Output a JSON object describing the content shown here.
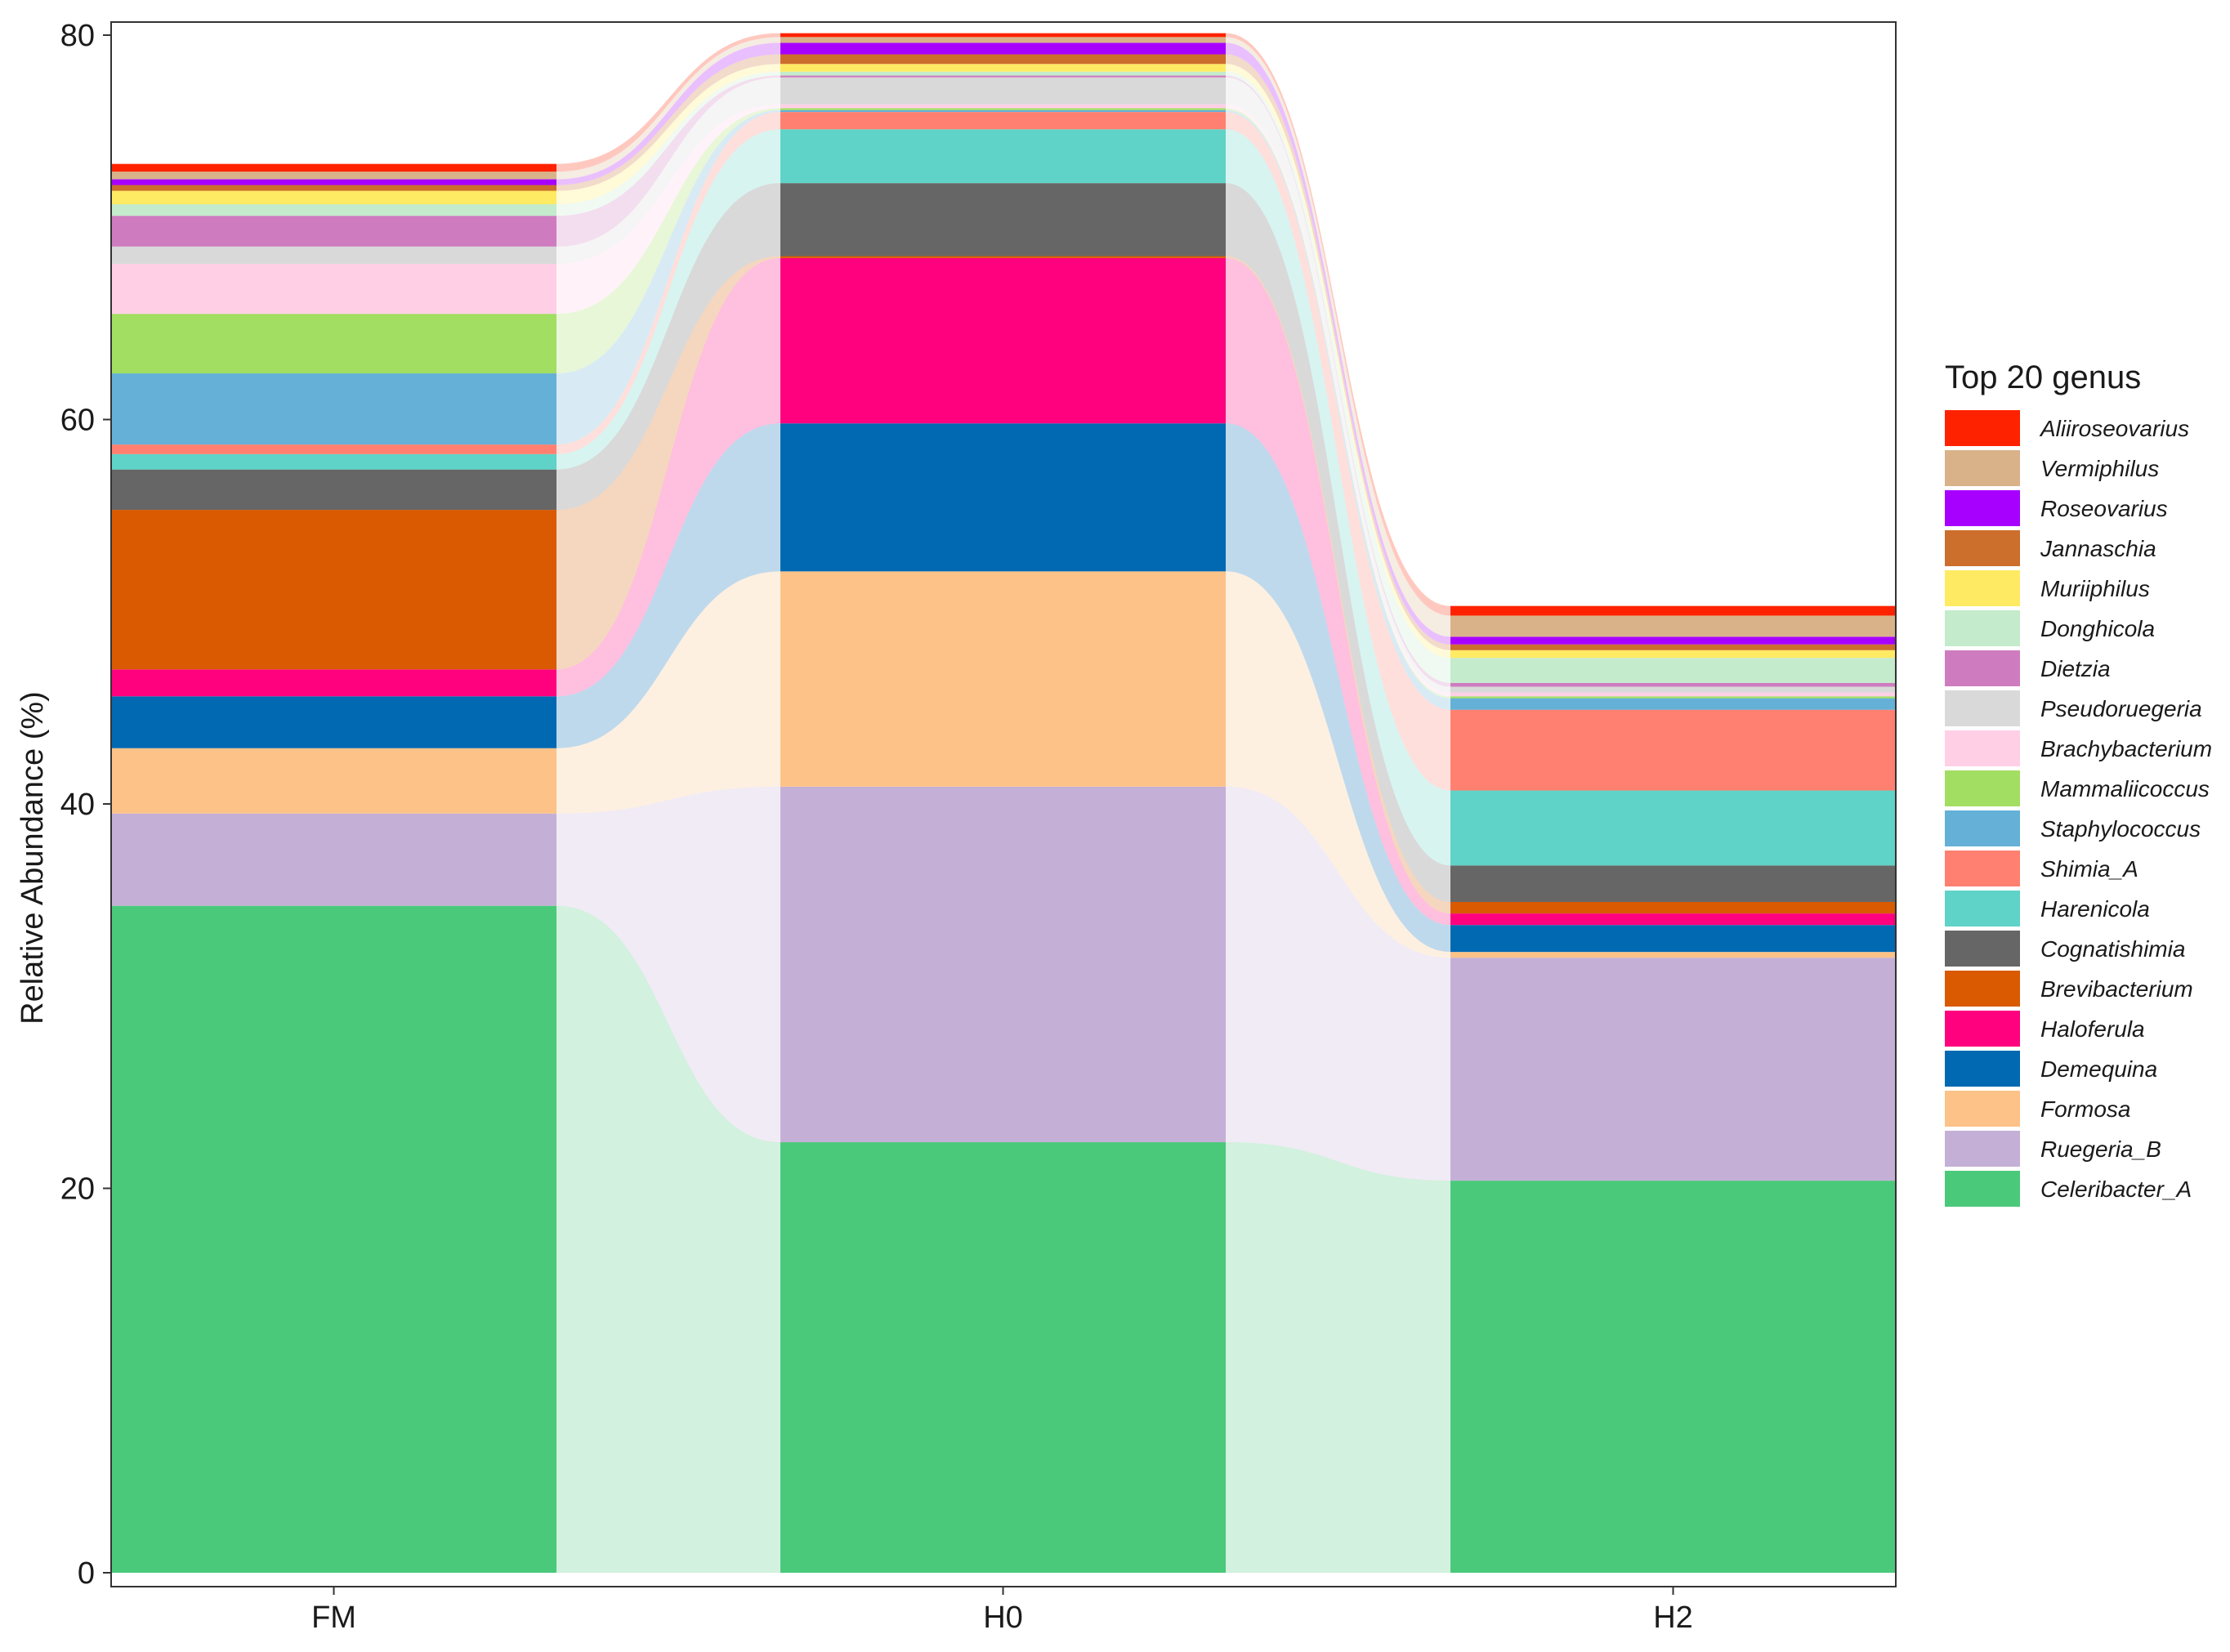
{
  "chart_data": {
    "type": "bar",
    "subtype": "stacked-alluvial",
    "categories": [
      "FM",
      "H0",
      "H2"
    ],
    "ylabel": "Relative Abundance (%)",
    "xlabel": "",
    "ylim": [
      0,
      80
    ],
    "yticks": [
      0,
      20,
      40,
      60,
      80
    ],
    "grid": false,
    "legend": {
      "title": "Top 20 genus",
      "position": "right"
    },
    "series": [
      {
        "name": "Celeribacter_A",
        "color": "#4AC97A",
        "values": [
          34.7,
          22.4,
          20.4
        ]
      },
      {
        "name": "Ruegeria_B",
        "color": "#C4B0D6",
        "values": [
          4.8,
          18.5,
          11.6
        ]
      },
      {
        "name": "Formosa",
        "color": "#FCC288",
        "values": [
          3.4,
          11.2,
          0.3
        ]
      },
      {
        "name": "Demequina",
        "color": "#0069B2",
        "values": [
          2.7,
          7.7,
          1.4
        ]
      },
      {
        "name": "Haloferula",
        "color": "#FF007F",
        "values": [
          1.4,
          8.6,
          0.6
        ]
      },
      {
        "name": "Brevibacterium",
        "color": "#D95A00",
        "values": [
          8.3,
          0.1,
          0.6
        ]
      },
      {
        "name": "Cognatishimia",
        "color": "#666666",
        "values": [
          2.1,
          3.8,
          1.9
        ]
      },
      {
        "name": "Harenicola",
        "color": "#5FD3C7",
        "values": [
          0.8,
          2.8,
          3.9
        ]
      },
      {
        "name": "Shimia_A",
        "color": "#FF8070",
        "values": [
          0.5,
          0.9,
          4.2
        ]
      },
      {
        "name": "Staphylococcus",
        "color": "#64B0D6",
        "values": [
          3.7,
          0.1,
          0.6
        ]
      },
      {
        "name": "Mammaliicoccus",
        "color": "#A2DE62",
        "values": [
          3.1,
          0.1,
          0.1
        ]
      },
      {
        "name": "Brachybacterium",
        "color": "#FFCFE6",
        "values": [
          2.6,
          0.2,
          0.2
        ]
      },
      {
        "name": "Pseudoruegeria",
        "color": "#D9D9D9",
        "values": [
          0.9,
          1.4,
          0.3
        ]
      },
      {
        "name": "Dietzia",
        "color": "#CE7CBF",
        "values": [
          1.6,
          0.1,
          0.2
        ]
      },
      {
        "name": "Donghicola",
        "color": "#C4EBCB",
        "values": [
          0.6,
          0.2,
          1.3
        ]
      },
      {
        "name": "Muriiphilus",
        "color": "#FFEA63",
        "values": [
          0.7,
          0.4,
          0.4
        ]
      },
      {
        "name": "Jannaschia",
        "color": "#CC6E2C",
        "values": [
          0.3,
          0.5,
          0.3
        ]
      },
      {
        "name": "Roseovarius",
        "color": "#A800FF",
        "values": [
          0.3,
          0.6,
          0.4
        ]
      },
      {
        "name": "Vermiphilus",
        "color": "#D9B28A",
        "values": [
          0.4,
          0.3,
          1.1
        ]
      },
      {
        "name": "Aliiroseovarius",
        "color": "#FF2200",
        "values": [
          0.4,
          0.2,
          0.5
        ]
      }
    ]
  }
}
